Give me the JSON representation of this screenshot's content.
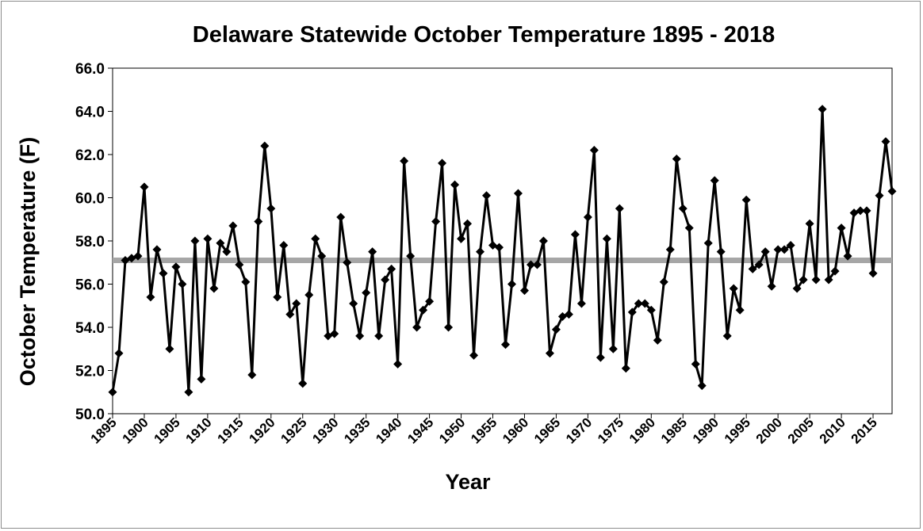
{
  "chart_data": {
    "type": "line",
    "title": "Delaware Statewide October Temperature 1895 - 2018",
    "xlabel": "Year",
    "ylabel": "October Temperature (F)",
    "xlim": [
      1895,
      2018
    ],
    "ylim": [
      50.0,
      66.0
    ],
    "yticks": [
      "50.0",
      "52.0",
      "54.0",
      "56.0",
      "58.0",
      "60.0",
      "62.0",
      "64.0",
      "66.0"
    ],
    "xticks": [
      "1895",
      "1900",
      "1905",
      "1910",
      "1915",
      "1920",
      "1925",
      "1930",
      "1935",
      "1940",
      "1945",
      "1950",
      "1955",
      "1960",
      "1965",
      "1970",
      "1975",
      "1980",
      "1985",
      "1990",
      "1995",
      "2000",
      "2005",
      "2010",
      "2015"
    ],
    "average": 57.1,
    "series": [
      {
        "name": "October Temperature",
        "x": [
          1895,
          1896,
          1897,
          1898,
          1899,
          1900,
          1901,
          1902,
          1903,
          1904,
          1905,
          1906,
          1907,
          1908,
          1909,
          1910,
          1911,
          1912,
          1913,
          1914,
          1915,
          1916,
          1917,
          1918,
          1919,
          1920,
          1921,
          1922,
          1923,
          1924,
          1925,
          1926,
          1927,
          1928,
          1929,
          1930,
          1931,
          1932,
          1933,
          1934,
          1935,
          1936,
          1937,
          1938,
          1939,
          1940,
          1941,
          1942,
          1943,
          1944,
          1945,
          1946,
          1947,
          1948,
          1949,
          1950,
          1951,
          1952,
          1953,
          1954,
          1955,
          1956,
          1957,
          1958,
          1959,
          1960,
          1961,
          1962,
          1963,
          1964,
          1965,
          1966,
          1967,
          1968,
          1969,
          1970,
          1971,
          1972,
          1973,
          1974,
          1975,
          1976,
          1977,
          1978,
          1979,
          1980,
          1981,
          1982,
          1983,
          1984,
          1985,
          1986,
          1987,
          1988,
          1989,
          1990,
          1991,
          1992,
          1993,
          1994,
          1995,
          1996,
          1997,
          1998,
          1999,
          2000,
          2001,
          2002,
          2003,
          2004,
          2005,
          2006,
          2007,
          2008,
          2009,
          2010,
          2011,
          2012,
          2013,
          2014,
          2015,
          2016,
          2017,
          2018
        ],
        "values": [
          51.0,
          52.8,
          57.1,
          57.2,
          57.3,
          60.5,
          55.4,
          57.6,
          56.5,
          53.0,
          56.8,
          56.0,
          51.0,
          58.0,
          51.6,
          58.1,
          55.8,
          57.9,
          57.5,
          58.7,
          56.9,
          56.1,
          51.8,
          58.9,
          62.4,
          59.5,
          55.4,
          57.8,
          54.6,
          55.1,
          51.4,
          55.5,
          58.1,
          57.3,
          53.6,
          53.7,
          59.1,
          57.0,
          55.1,
          53.6,
          55.6,
          57.5,
          53.6,
          56.2,
          56.7,
          52.3,
          61.7,
          57.3,
          54.0,
          54.8,
          55.2,
          58.9,
          61.6,
          54.0,
          60.6,
          58.1,
          58.8,
          52.7,
          57.5,
          60.1,
          57.8,
          57.7,
          53.2,
          56.0,
          60.2,
          55.7,
          56.9,
          56.9,
          58.0,
          52.8,
          53.9,
          54.5,
          54.6,
          58.3,
          55.1,
          59.1,
          62.2,
          52.6,
          58.1,
          53.0,
          59.5,
          52.1,
          54.7,
          55.1,
          55.1,
          54.8,
          53.4,
          56.1,
          57.6,
          61.8,
          59.5,
          58.6,
          52.3,
          51.3,
          57.9,
          60.8,
          57.5,
          53.6,
          55.8,
          54.8,
          59.9,
          56.7,
          56.9,
          57.5,
          55.9,
          57.6,
          57.6,
          57.8,
          55.8,
          56.2,
          58.8,
          56.2,
          64.1,
          56.2,
          56.6,
          58.6,
          57.3,
          59.3,
          59.4,
          59.4,
          56.5,
          60.1,
          62.6,
          60.3
        ]
      }
    ]
  }
}
